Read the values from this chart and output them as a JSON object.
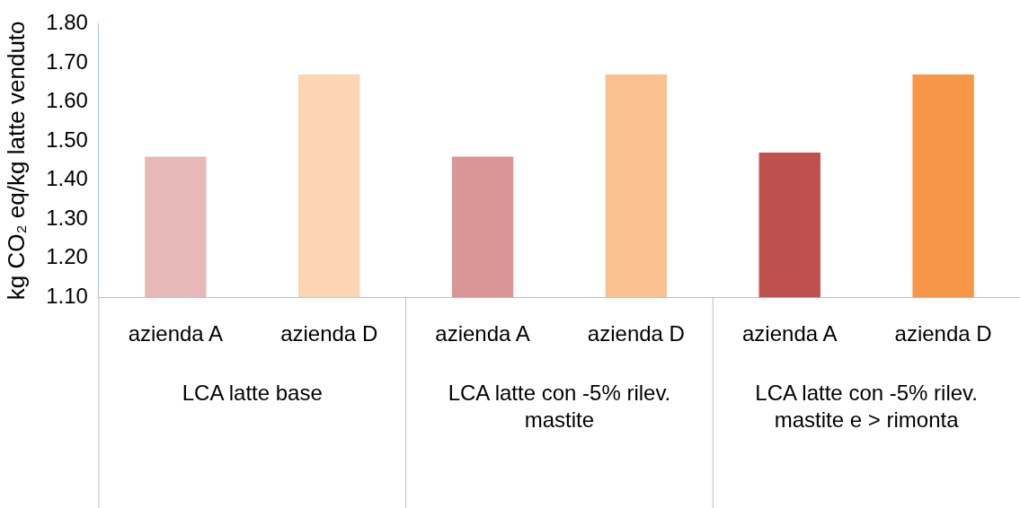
{
  "chart_data": {
    "type": "bar",
    "ylabel": "kg CO₂ eq/kg latte venduto",
    "categories": [
      "azienda A",
      "azienda D",
      "azienda A",
      "azienda D",
      "azienda A",
      "azienda D"
    ],
    "values": [
      1.46,
      1.67,
      1.46,
      1.67,
      1.47,
      1.67
    ],
    "colors": [
      "#e6b9b8",
      "#fcd5b4",
      "#d99694",
      "#fac090",
      "#c0504d",
      "#f79646"
    ],
    "ylim": [
      1.1,
      1.8
    ],
    "yticks": [
      {
        "value": 1.1,
        "label": "1.10"
      },
      {
        "value": 1.2,
        "label": "1.20"
      },
      {
        "value": 1.3,
        "label": "1.30"
      },
      {
        "value": 1.4,
        "label": "1.40"
      },
      {
        "value": 1.5,
        "label": "1.50"
      },
      {
        "value": 1.6,
        "label": "1.60"
      },
      {
        "value": 1.7,
        "label": "1.70"
      },
      {
        "value": 1.8,
        "label": "1.80"
      }
    ],
    "annotations": [
      "LCA latte base",
      "LCA latte con -5% rilev. mastite",
      "LCA latte con -5% rilev. mastite e > rimonta"
    ],
    "grid": false,
    "legend": false
  }
}
